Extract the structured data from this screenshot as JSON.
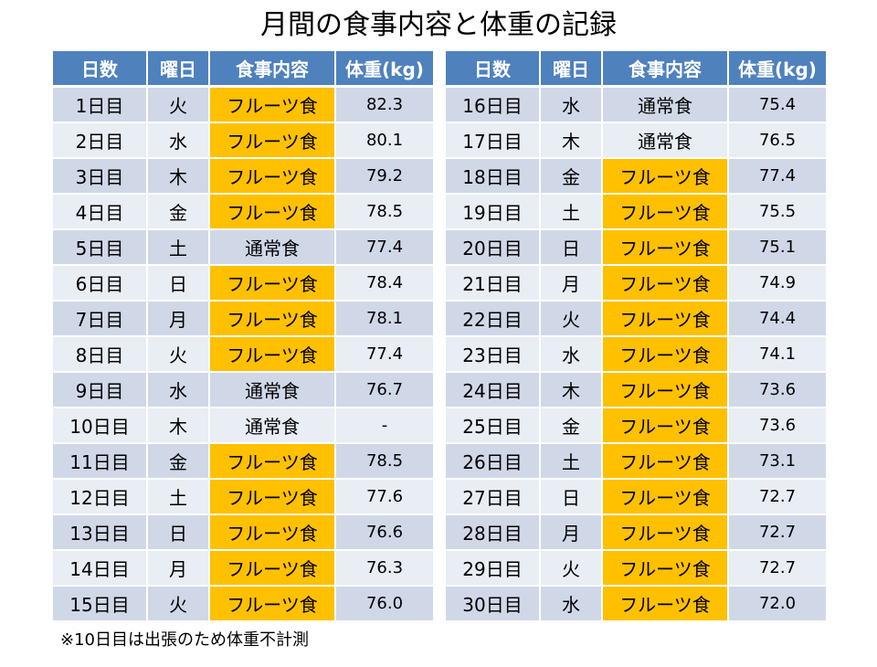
{
  "title": "月間の食事内容と体重の記録",
  "headers": {
    "day": "日数",
    "weekday": "曜日",
    "meal": "食事内容",
    "weight": "体重(kg)"
  },
  "colors": {
    "header_bg": "#4f81bd",
    "row_odd": "#d0d8e8",
    "row_even": "#e9edf4",
    "fruit_highlight": "#ffc000"
  },
  "rows_left": [
    {
      "day": "1日目",
      "weekday": "火",
      "meal": "フルーツ食",
      "fruit": true,
      "weight": "82.3"
    },
    {
      "day": "2日目",
      "weekday": "水",
      "meal": "フルーツ食",
      "fruit": true,
      "weight": "80.1"
    },
    {
      "day": "3日目",
      "weekday": "木",
      "meal": "フルーツ食",
      "fruit": true,
      "weight": "79.2"
    },
    {
      "day": "4日目",
      "weekday": "金",
      "meal": "フルーツ食",
      "fruit": true,
      "weight": "78.5"
    },
    {
      "day": "5日目",
      "weekday": "土",
      "meal": "通常食",
      "fruit": false,
      "weight": "77.4"
    },
    {
      "day": "6日目",
      "weekday": "日",
      "meal": "フルーツ食",
      "fruit": true,
      "weight": "78.4"
    },
    {
      "day": "7日目",
      "weekday": "月",
      "meal": "フルーツ食",
      "fruit": true,
      "weight": "78.1"
    },
    {
      "day": "8日目",
      "weekday": "火",
      "meal": "フルーツ食",
      "fruit": true,
      "weight": "77.4"
    },
    {
      "day": "9日目",
      "weekday": "水",
      "meal": "通常食",
      "fruit": false,
      "weight": "76.7"
    },
    {
      "day": "10日目",
      "weekday": "木",
      "meal": "通常食",
      "fruit": false,
      "weight": "-"
    },
    {
      "day": "11日目",
      "weekday": "金",
      "meal": "フルーツ食",
      "fruit": true,
      "weight": "78.5"
    },
    {
      "day": "12日目",
      "weekday": "土",
      "meal": "フルーツ食",
      "fruit": true,
      "weight": "77.6"
    },
    {
      "day": "13日目",
      "weekday": "日",
      "meal": "フルーツ食",
      "fruit": true,
      "weight": "76.6"
    },
    {
      "day": "14日目",
      "weekday": "月",
      "meal": "フルーツ食",
      "fruit": true,
      "weight": "76.3"
    },
    {
      "day": "15日目",
      "weekday": "火",
      "meal": "フルーツ食",
      "fruit": true,
      "weight": "76.0"
    }
  ],
  "rows_right": [
    {
      "day": "16日目",
      "weekday": "水",
      "meal": "通常食",
      "fruit": false,
      "weight": "75.4"
    },
    {
      "day": "17日目",
      "weekday": "木",
      "meal": "通常食",
      "fruit": false,
      "weight": "76.5"
    },
    {
      "day": "18日目",
      "weekday": "金",
      "meal": "フルーツ食",
      "fruit": true,
      "weight": "77.4"
    },
    {
      "day": "19日目",
      "weekday": "土",
      "meal": "フルーツ食",
      "fruit": true,
      "weight": "75.5"
    },
    {
      "day": "20日目",
      "weekday": "日",
      "meal": "フルーツ食",
      "fruit": true,
      "weight": "75.1"
    },
    {
      "day": "21日目",
      "weekday": "月",
      "meal": "フルーツ食",
      "fruit": true,
      "weight": "74.9"
    },
    {
      "day": "22日目",
      "weekday": "火",
      "meal": "フルーツ食",
      "fruit": true,
      "weight": "74.4"
    },
    {
      "day": "23日目",
      "weekday": "水",
      "meal": "フルーツ食",
      "fruit": true,
      "weight": "74.1"
    },
    {
      "day": "24日目",
      "weekday": "木",
      "meal": "フルーツ食",
      "fruit": true,
      "weight": "73.6"
    },
    {
      "day": "25日目",
      "weekday": "金",
      "meal": "フルーツ食",
      "fruit": true,
      "weight": "73.6"
    },
    {
      "day": "26日目",
      "weekday": "土",
      "meal": "フルーツ食",
      "fruit": true,
      "weight": "73.1"
    },
    {
      "day": "27日目",
      "weekday": "日",
      "meal": "フルーツ食",
      "fruit": true,
      "weight": "72.7"
    },
    {
      "day": "28日目",
      "weekday": "月",
      "meal": "フルーツ食",
      "fruit": true,
      "weight": "72.7"
    },
    {
      "day": "29日目",
      "weekday": "火",
      "meal": "フルーツ食",
      "fruit": true,
      "weight": "72.7"
    },
    {
      "day": "30日目",
      "weekday": "水",
      "meal": "フルーツ食",
      "fruit": true,
      "weight": "72.0"
    }
  ],
  "note": "※10日目は出張のため体重不計測"
}
